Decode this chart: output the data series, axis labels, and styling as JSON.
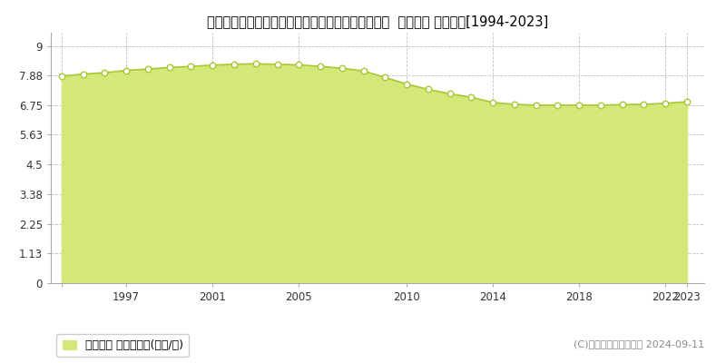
{
  "title": "山形県東置賜郡高畠町大字福沢字鎌塚台１５０番６  地価公示 地価推移[1994-2023]",
  "years": [
    1994,
    1995,
    1996,
    1997,
    1998,
    1999,
    2000,
    2001,
    2002,
    2003,
    2004,
    2005,
    2006,
    2007,
    2008,
    2009,
    2010,
    2011,
    2012,
    2013,
    2014,
    2015,
    2016,
    2017,
    2018,
    2019,
    2020,
    2021,
    2022,
    2023
  ],
  "values": [
    7.85,
    7.93,
    7.98,
    8.07,
    8.12,
    8.18,
    8.22,
    8.27,
    8.3,
    8.32,
    8.3,
    8.28,
    8.22,
    8.15,
    8.05,
    7.8,
    7.55,
    7.35,
    7.18,
    7.05,
    6.85,
    6.78,
    6.75,
    6.75,
    6.75,
    6.75,
    6.77,
    6.78,
    6.82,
    6.88
  ],
  "line_color": "#a8c832",
  "fill_color": "#d4e87a",
  "fill_alpha": 1.0,
  "marker_facecolor": "#ffffff",
  "marker_edgecolor": "#a8c832",
  "background_color": "#ffffff",
  "plot_bg_color": "#ffffff",
  "grid_color": "#bbbbbb",
  "yticks": [
    0,
    1.13,
    2.25,
    3.38,
    4.5,
    5.63,
    6.75,
    7.88,
    9
  ],
  "ytick_labels": [
    "0",
    "1.13",
    "2.25",
    "3.38",
    "4.5",
    "5.63",
    "6.75",
    "7.88",
    "9"
  ],
  "xticks": [
    1994,
    1997,
    2001,
    2005,
    2010,
    2014,
    2018,
    2022,
    2023
  ],
  "xtick_labels": [
    "",
    "1997",
    "2001",
    "2005",
    "2010",
    "2014",
    "2018",
    "2022",
    "2023"
  ],
  "xlim": [
    1993.5,
    2023.8
  ],
  "ylim": [
    0,
    9.5
  ],
  "legend_label": "地価公示 平均坪単価(万円/坪)",
  "copyright_text": "(C)土地価格ドットコム 2024-09-11",
  "title_fontsize": 10.5,
  "tick_fontsize": 8.5,
  "legend_fontsize": 9,
  "copyright_fontsize": 8
}
